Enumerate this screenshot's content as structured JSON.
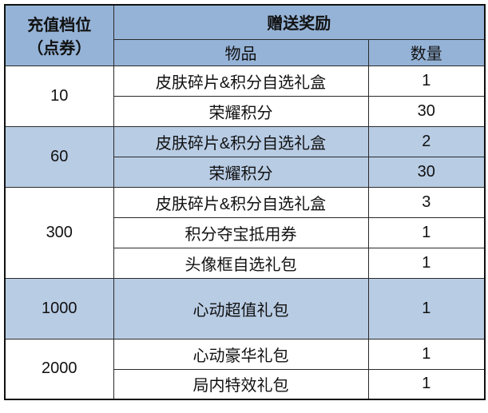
{
  "header": {
    "tier_label": "充值档位",
    "tier_unit": "（点券）",
    "reward_label": "赠送奖励",
    "item_label": "物品",
    "qty_label": "数量"
  },
  "colors": {
    "header": "#95b3d7",
    "highlight_row": "#b8cce4",
    "plain_row": "#ffffff"
  },
  "tiers": [
    {
      "tier": "10",
      "highlight": false,
      "items": [
        {
          "name": "皮肤碎片&积分自选礼盒",
          "qty": "1"
        },
        {
          "name": "荣耀积分",
          "qty": "30"
        }
      ]
    },
    {
      "tier": "60",
      "highlight": true,
      "items": [
        {
          "name": "皮肤碎片&积分自选礼盒",
          "qty": "2"
        },
        {
          "name": "荣耀积分",
          "qty": "30"
        }
      ]
    },
    {
      "tier": "300",
      "highlight": false,
      "items": [
        {
          "name": "皮肤碎片&积分自选礼盒",
          "qty": "3"
        },
        {
          "name": "积分夺宝抵用券",
          "qty": "1"
        },
        {
          "name": "头像框自选礼包",
          "qty": "1"
        }
      ]
    },
    {
      "tier": "1000",
      "highlight": true,
      "items": [
        {
          "name": "心动超值礼包",
          "qty": "1"
        }
      ]
    },
    {
      "tier": "2000",
      "highlight": false,
      "items": [
        {
          "name": "心动豪华礼包",
          "qty": "1"
        },
        {
          "name": "局内特效礼包",
          "qty": "1"
        }
      ]
    }
  ]
}
